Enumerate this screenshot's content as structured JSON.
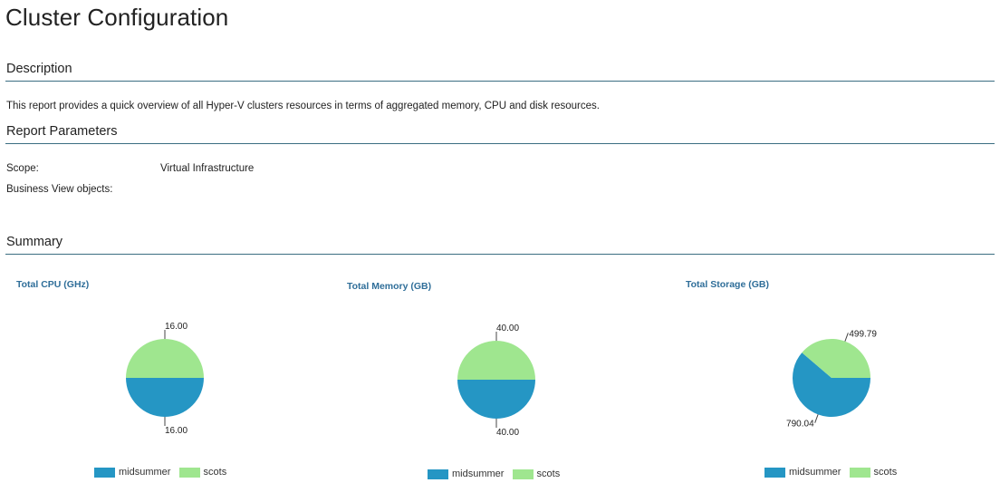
{
  "page": {
    "title": "Cluster Configuration"
  },
  "description": {
    "heading": "Description",
    "text": "This report provides a quick overview of all Hyper-V clusters resources in terms of aggregated memory, CPU and disk resources."
  },
  "report_parameters": {
    "heading": "Report Parameters",
    "rows": [
      {
        "label": "Scope:",
        "value": "Virtual Infrastructure"
      },
      {
        "label": "Business View objects:",
        "value": ""
      }
    ]
  },
  "summary": {
    "heading": "Summary"
  },
  "colors": {
    "midsummer": "#2596c4",
    "scots": "#9fe68f",
    "rule": "#3b6e82",
    "chart_title": "#2f6e99"
  },
  "chart_data": [
    {
      "type": "pie",
      "title": "Total CPU (GHz)",
      "series": [
        {
          "name": "midsummer",
          "value": 16.0,
          "label": "16.00"
        },
        {
          "name": "scots",
          "value": 16.0,
          "label": "16.00"
        }
      ],
      "legend": [
        "midsummer",
        "scots"
      ],
      "legend_position": "bottom"
    },
    {
      "type": "pie",
      "title": "Total Memory (GB)",
      "series": [
        {
          "name": "midsummer",
          "value": 40.0,
          "label": "40.00"
        },
        {
          "name": "scots",
          "value": 40.0,
          "label": "40.00"
        }
      ],
      "legend": [
        "midsummer",
        "scots"
      ],
      "legend_position": "bottom"
    },
    {
      "type": "pie",
      "title": "Total Storage (GB)",
      "series": [
        {
          "name": "midsummer",
          "value": 790.04,
          "label": "790.04"
        },
        {
          "name": "scots",
          "value": 499.79,
          "label": "499.79"
        }
      ],
      "legend": [
        "midsummer",
        "scots"
      ],
      "legend_position": "bottom"
    }
  ]
}
